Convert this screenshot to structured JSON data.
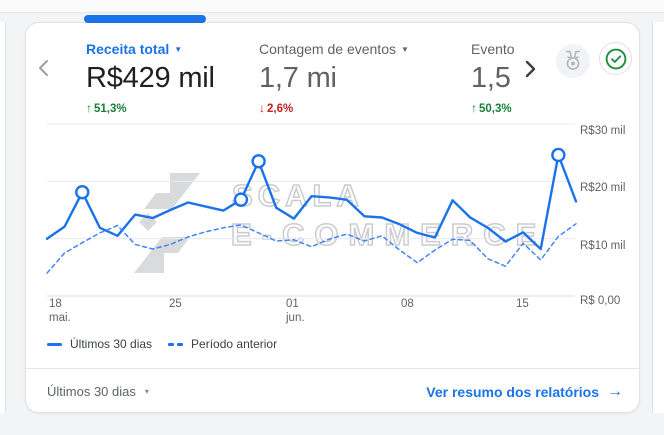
{
  "colors": {
    "accent": "#1a73e8",
    "positive": "#188038",
    "negative": "#c5221f",
    "text_primary": "#202124",
    "text_secondary": "#5f6368",
    "gridline": "#e8eaed",
    "axis_line": "#dadce0",
    "card_border": "#dfe1e5",
    "prev_period_line": "#4285f4"
  },
  "header": {
    "caret": "▼",
    "metrics": [
      {
        "label": "Receita total",
        "value": "R$429 mil",
        "arrow": "↑",
        "delta": "51,3%",
        "trend": "up",
        "active": true
      },
      {
        "label": "Contagem de eventos",
        "value": "1,7 mi",
        "arrow": "↓",
        "delta": "2,6%",
        "trend": "down",
        "active": false
      },
      {
        "label": "Evento",
        "value": "1,5",
        "arrow": "↑",
        "delta": "50,3%",
        "trend": "up",
        "active": false
      }
    ]
  },
  "chart_data": {
    "type": "line",
    "unit": "R$ mil",
    "ylim": [
      0,
      30
    ],
    "grid": true,
    "legend_position": "bottom",
    "y_ticks": [
      {
        "value": 30,
        "label": "R$30 mil"
      },
      {
        "value": 20,
        "label": "R$20 mil"
      },
      {
        "value": 10,
        "label": "R$10 mil"
      },
      {
        "value": 0,
        "label": "R$ 0,00"
      }
    ],
    "x_ticks": [
      {
        "pos": 0.017,
        "label": "18",
        "sub": "mai."
      },
      {
        "pos": 0.234,
        "label": "25",
        "sub": ""
      },
      {
        "pos": 0.45,
        "label": "01",
        "sub": "jun."
      },
      {
        "pos": 0.667,
        "label": "08",
        "sub": ""
      },
      {
        "pos": 0.883,
        "label": "15",
        "sub": ""
      }
    ],
    "series": [
      {
        "name": "Últimos 30 dias",
        "style": "solid",
        "color": "#1a73e8",
        "values": [
          10.0,
          12.1,
          18.1,
          11.9,
          10.5,
          14.2,
          13.6,
          15.0,
          16.3,
          15.6,
          14.9,
          16.8,
          23.5,
          15.4,
          13.5,
          17.4,
          17.2,
          16.8,
          13.9,
          13.7,
          12.5,
          11.0,
          10.2,
          16.7,
          13.7,
          11.9,
          9.5,
          11.1,
          8.2,
          24.6,
          16.5
        ],
        "marker_indices": [
          2,
          11,
          12,
          29
        ]
      },
      {
        "name": "Período anterior",
        "style": "dashed",
        "color": "#4285f4",
        "values": [
          4.0,
          7.5,
          9.3,
          11.0,
          12.3,
          9.0,
          8.2,
          9.0,
          10.3,
          11.2,
          11.9,
          12.4,
          11.0,
          9.6,
          9.8,
          8.6,
          9.9,
          10.8,
          9.6,
          10.5,
          8.0,
          5.8,
          8.0,
          9.9,
          9.7,
          6.5,
          5.2,
          9.2,
          6.3,
          10.4,
          12.6
        ],
        "marker_indices": []
      }
    ]
  },
  "watermark": {
    "line1": "SCALA",
    "line2": "E-COMMERCE"
  },
  "footer": {
    "range_label": "Últimos 30 dias",
    "caret": "▾",
    "link_label": "Ver resumo dos relatórios",
    "link_arrow": "→"
  },
  "icons": {
    "prev": "chevron-left-icon",
    "next": "chevron-right-icon",
    "badge": "medal-icon",
    "check": "check-circle-icon"
  }
}
